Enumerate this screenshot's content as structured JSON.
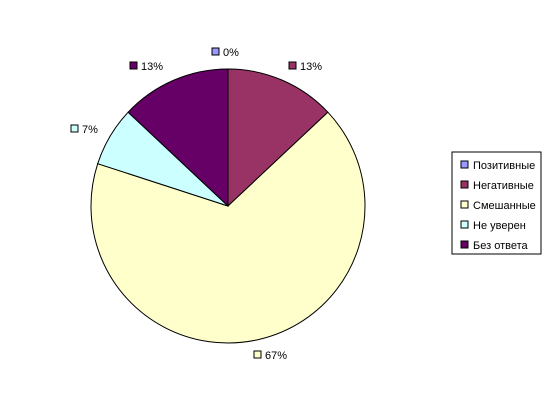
{
  "chart_data": {
    "type": "pie",
    "categories": [
      "Позитивные",
      "Негативные",
      "Смешанные",
      "Не уверен",
      "Без ответа"
    ],
    "values": [
      0,
      13,
      67,
      7,
      13
    ],
    "data_labels": [
      "0%",
      "13%",
      "67%",
      "7%",
      "13%"
    ],
    "colors": [
      "#9999ff",
      "#993366",
      "#ffffcc",
      "#ccffff",
      "#660066"
    ],
    "legend_placement": "right",
    "start_angle": "12 o'clock",
    "direction": "clockwise"
  }
}
